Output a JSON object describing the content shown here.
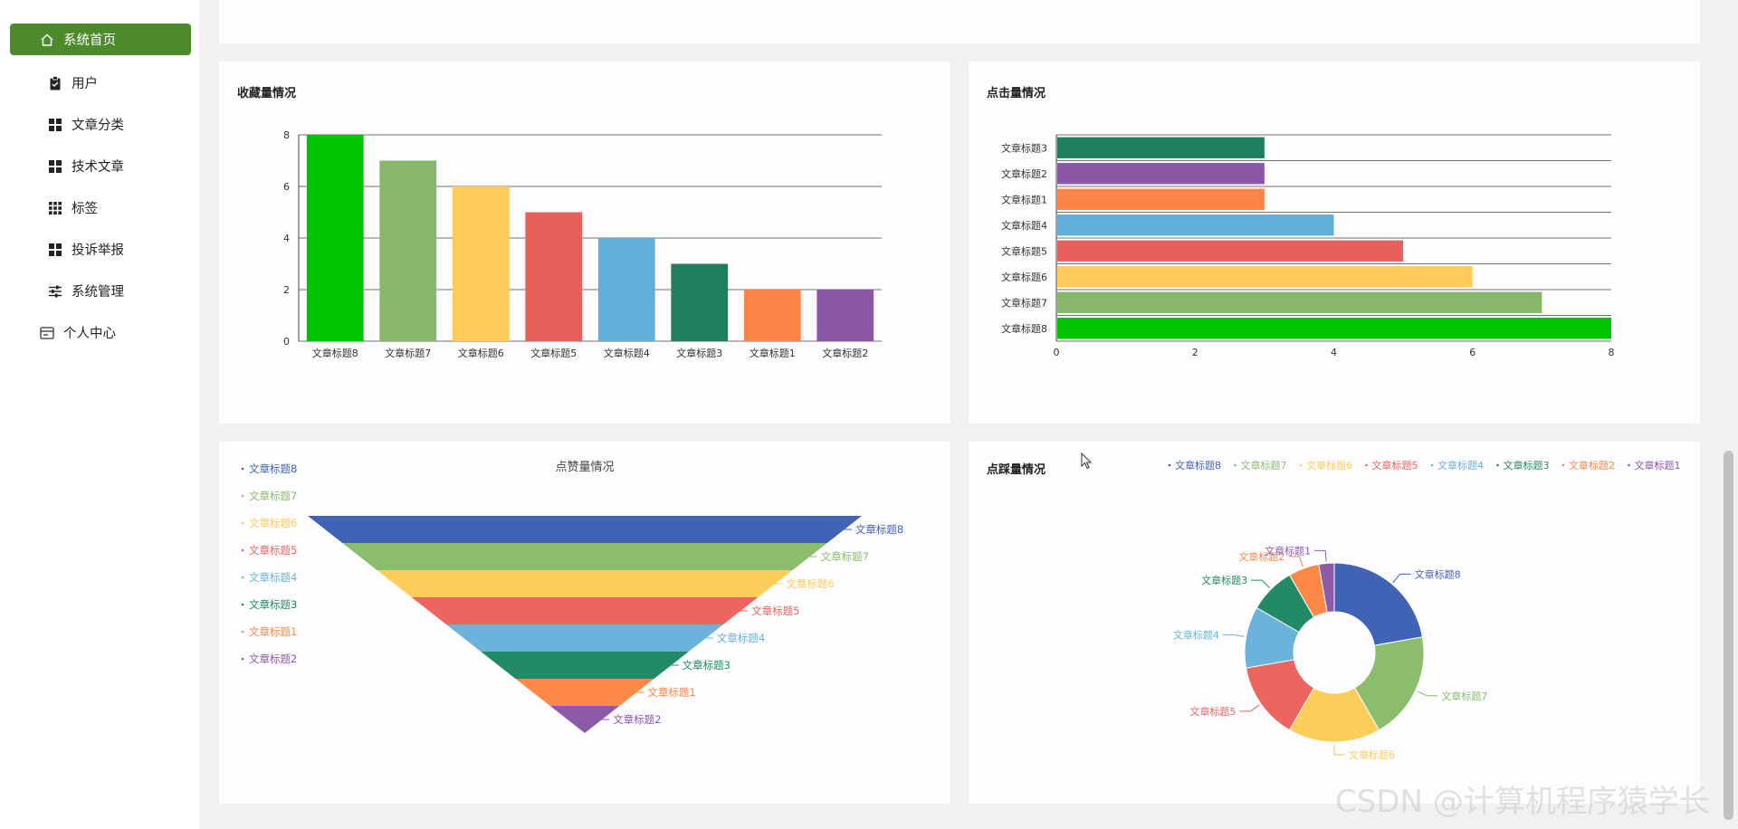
{
  "sidebar": {
    "items": [
      {
        "label": "系统首页",
        "icon": "home-icon"
      },
      {
        "label": "用户",
        "icon": "clipboard-icon"
      },
      {
        "label": "文章分类",
        "icon": "grid-icon"
      },
      {
        "label": "技术文章",
        "icon": "grid-icon"
      },
      {
        "label": "标签",
        "icon": "grid-icon"
      },
      {
        "label": "投诉举报",
        "icon": "grid-icon"
      },
      {
        "label": "系统管理",
        "icon": "sliders-icon"
      },
      {
        "label": "个人中心",
        "icon": "card-icon"
      }
    ]
  },
  "panels": {
    "favorites": {
      "title": "收藏量情况"
    },
    "clicks": {
      "title": "点击量情况"
    },
    "likes": {
      "title": "点赞量情况"
    },
    "dislikes": {
      "title": "点踩量情况"
    }
  },
  "watermark": "CSDN @计算机程序猿学长",
  "colors": {
    "accent": "#4c8a2c",
    "series": {
      "文章标题8": "#00c400",
      "文章标题7": "#86b76b",
      "文章标题6": "#ffcc5a",
      "文章标题5": "#e7615b",
      "文章标题4": "#5fafd8",
      "文章标题3": "#1f7f5c",
      "文章标题1": "#fc8447",
      "文章标题2": "#8b57a7"
    },
    "funnel": [
      "#4163b6",
      "#8cbd6c",
      "#fdcd59",
      "#ed6561",
      "#6bb3da",
      "#228a66",
      "#fd8848",
      "#8d5aa8"
    ],
    "pie": [
      "#4163b6",
      "#8cbd6c",
      "#fdcd59",
      "#ed6561",
      "#6bb3da",
      "#228a66",
      "#fd8848",
      "#8d5aa8"
    ]
  },
  "chart_data": [
    {
      "type": "bar",
      "title": "收藏量情况",
      "categories": [
        "文章标题8",
        "文章标题7",
        "文章标题6",
        "文章标题5",
        "文章标题4",
        "文章标题3",
        "文章标题1",
        "文章标题2"
      ],
      "values": [
        8,
        7,
        6,
        5,
        4,
        3,
        2,
        2
      ],
      "ylim": [
        0,
        8
      ],
      "yticks": [
        "0",
        "2",
        "4",
        "6",
        "8"
      ],
      "xlabel": "",
      "ylabel": ""
    },
    {
      "type": "bar",
      "orientation": "horizontal",
      "title": "点击量情况",
      "categories": [
        "文章标题8",
        "文章标题7",
        "文章标题6",
        "文章标题5",
        "文章标题4",
        "文章标题1",
        "文章标题2",
        "文章标题3"
      ],
      "values": [
        8,
        7,
        6,
        5,
        4,
        3,
        3,
        3
      ],
      "xlim": [
        0,
        8
      ],
      "xticks": [
        "0",
        "2",
        "4",
        "6",
        "8"
      ]
    },
    {
      "type": "funnel",
      "title": "点赞量情况",
      "categories": [
        "文章标题8",
        "文章标题7",
        "文章标题6",
        "文章标题5",
        "文章标题4",
        "文章标题3",
        "文章标题1",
        "文章标题2"
      ],
      "values": [
        8,
        7,
        6,
        5,
        4,
        3,
        2,
        1
      ],
      "legend": [
        "文章标题8",
        "文章标题7",
        "文章标题6",
        "文章标题5",
        "文章标题4",
        "文章标题3",
        "文章标题1",
        "文章标题2"
      ]
    },
    {
      "type": "pie",
      "title": "点踩量情况",
      "categories": [
        "文章标题8",
        "文章标题7",
        "文章标题6",
        "文章标题5",
        "文章标题4",
        "文章标题3",
        "文章标题2",
        "文章标题1"
      ],
      "values": [
        8,
        7,
        6,
        5,
        4,
        3,
        2,
        1
      ],
      "legend": [
        "文章标题8",
        "文章标题7",
        "文章标题6",
        "文章标题5",
        "文章标题4",
        "文章标题3",
        "文章标题2",
        "文章标题1"
      ]
    }
  ]
}
